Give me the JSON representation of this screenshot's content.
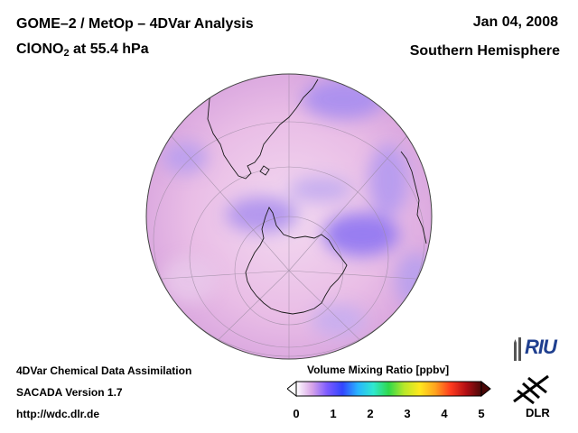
{
  "header": {
    "title": "GOME–2 / MetOp – 4DVar Analysis",
    "species_main": "ClONO",
    "species_sub": "2",
    "species_rest": " at 55.4 hPa",
    "date": "Jan 04, 2008",
    "region": "Southern Hemisphere"
  },
  "footer": {
    "line1": "4DVar Chemical Data Assimilation",
    "line2": "SACADA Version 1.7",
    "line3": "http://wdc.dlr.de"
  },
  "colorbar": {
    "title": "Volume Mixing Ratio [ppbv]",
    "ticks": [
      "0",
      "1",
      "2",
      "3",
      "4",
      "5"
    ],
    "range": [
      0,
      5
    ],
    "colors": [
      "#ffffff",
      "#d9a6e8",
      "#7d5bff",
      "#3246ff",
      "#28b4ff",
      "#2fe8d0",
      "#2fd84a",
      "#b8e82a",
      "#ffe81e",
      "#ffa41e",
      "#ff3c1e",
      "#b40f14",
      "#4a0808"
    ]
  },
  "logos": {
    "riu": "RIU",
    "dlr": "DLR"
  },
  "map": {
    "projection": "orthographic, south polar",
    "background_color": "#e6b4e2",
    "low_values_color": "#a496ee"
  }
}
